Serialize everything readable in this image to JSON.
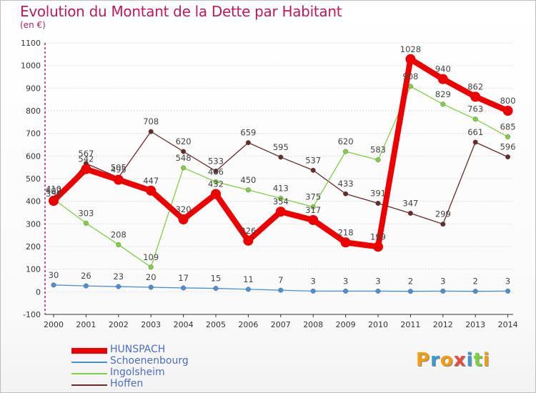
{
  "chart_data": {
    "type": "line",
    "title": "Evolution du Montant de la Dette par Habitant",
    "subtitle": "(en €)",
    "xlabel": "",
    "ylabel": "",
    "x": [
      "2000",
      "2001",
      "2002",
      "2003",
      "2004",
      "2005",
      "2006",
      "2007",
      "2008",
      "2009",
      "2010",
      "2011",
      "2012",
      "2013",
      "2014"
    ],
    "ylim": [
      -100,
      1100
    ],
    "yticks": [
      -100,
      0,
      100,
      200,
      300,
      400,
      500,
      600,
      700,
      800,
      900,
      1000,
      1100
    ],
    "grid": "horizontal",
    "legend_position": "bottom-left",
    "series": [
      {
        "name": "HUNSPACH",
        "color": "#ee0000",
        "values": [
          402,
          542,
          495,
          447,
          320,
          432,
          226,
          354,
          317,
          218,
          199,
          1028,
          940,
          862,
          800
        ]
      },
      {
        "name": "Schoenenbourg",
        "color": "#4a90d9",
        "values": [
          30,
          26,
          23,
          20,
          17,
          15,
          11,
          7,
          3,
          3,
          3,
          2,
          3,
          2,
          3
        ]
      },
      {
        "name": "Ingolsheim",
        "color": "#7ed140",
        "values": [
          410,
          303,
          208,
          109,
          548,
          486,
          450,
          413,
          375,
          620,
          583,
          908,
          829,
          763,
          685
        ]
      },
      {
        "name": "Hoffen",
        "color": "#6b2a2a",
        "values": [
          390,
          567,
          505,
          708,
          620,
          533,
          659,
          595,
          537,
          433,
          391,
          347,
          299,
          661,
          596
        ]
      }
    ]
  },
  "logo": {
    "text": "Proxiti",
    "colors": [
      "#f39c12",
      "#3d9ad1",
      "#f39c12",
      "#e74c3c",
      "#3d9ad1",
      "#7ed140",
      "#f39c12"
    ]
  }
}
